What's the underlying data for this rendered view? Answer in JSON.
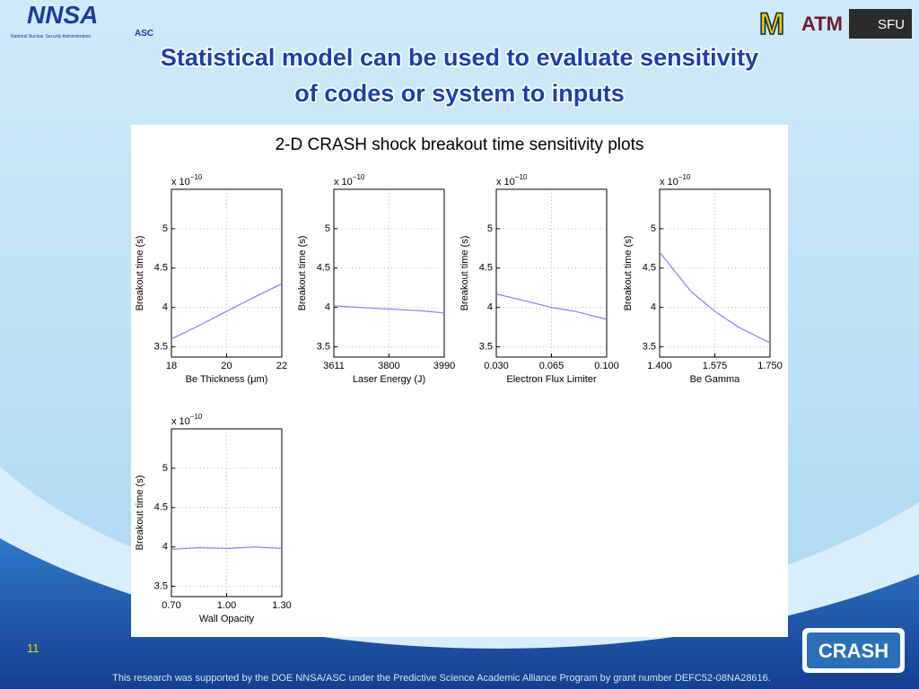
{
  "slide": {
    "title_line1": "Statistical model can be used to evaluate sensitivity",
    "title_line2": "of codes or system to inputs",
    "panel_title": "2-D CRASH shock breakout time sensitivity plots",
    "page_number": "11",
    "footer": "This research was supported by the DOE NNSA/ASC under the Predictive Science Academic Alliance Program by grant number DEFC52-08NA28616.",
    "logo_nnsa": "NNSA",
    "logo_nnsa_sub": "National Nuclear Security Administration",
    "logo_asc": "ASC",
    "logo_m": "M",
    "logo_tamu": "ATM",
    "logo_sfu": "SFU",
    "logo_crash": "CRASH"
  },
  "chart_data": [
    {
      "type": "line",
      "ylabel": "Breakout time (s)",
      "y_multiplier": "x 10",
      "y_exponent": "−10",
      "xlabel": "Be Thickness (μm)",
      "x": [
        18,
        19,
        20,
        21,
        22
      ],
      "series": [
        {
          "color": "#7f7ff2",
          "values": [
            3.6,
            3.77,
            3.95,
            4.13,
            4.3
          ]
        }
      ],
      "xlim": [
        18,
        22
      ],
      "xticks": [
        18,
        20,
        22
      ],
      "ylim": [
        3.37,
        5.5
      ],
      "yticks": [
        3.5,
        4,
        4.5,
        5
      ],
      "grid": true
    },
    {
      "type": "line",
      "ylabel": "Breakout time (s)",
      "y_multiplier": "x 10",
      "y_exponent": "−10",
      "xlabel": "Laser Energy (J)",
      "x": [
        3611,
        3700,
        3800,
        3900,
        3990
      ],
      "series": [
        {
          "color": "#7f7ff2",
          "values": [
            4.02,
            4.0,
            3.98,
            3.96,
            3.93
          ]
        }
      ],
      "xlim": [
        3611,
        3990
      ],
      "xticks": [
        3611,
        3800,
        3990
      ],
      "ylim": [
        3.37,
        5.5
      ],
      "yticks": [
        3.5,
        4,
        4.5,
        5
      ],
      "grid": true
    },
    {
      "type": "line",
      "ylabel": "Breakout time (s)",
      "y_multiplier": "x 10",
      "y_exponent": "−10",
      "xlabel": "Electron Flux Limiter",
      "x": [
        0.03,
        0.045,
        0.065,
        0.08,
        0.1
      ],
      "series": [
        {
          "color": "#7f7ff2",
          "values": [
            4.17,
            4.1,
            4.0,
            3.95,
            3.85
          ]
        }
      ],
      "xlim": [
        0.03,
        0.1
      ],
      "xticks": [
        {
          "value": 0.03,
          "label": "0.030"
        },
        {
          "value": 0.065,
          "label": "0.065"
        },
        {
          "value": 0.1,
          "label": "0.100"
        }
      ],
      "ylim": [
        3.37,
        5.5
      ],
      "yticks": [
        3.5,
        4,
        4.5,
        5
      ],
      "grid": true
    },
    {
      "type": "line",
      "ylabel": "Breakout time (s)",
      "y_multiplier": "x 10",
      "y_exponent": "−10",
      "xlabel": "Be Gamma",
      "x": [
        1.4,
        1.45,
        1.5,
        1.575,
        1.65,
        1.75
      ],
      "series": [
        {
          "color": "#7f7ff2",
          "values": [
            4.7,
            4.45,
            4.2,
            3.95,
            3.75,
            3.55
          ]
        }
      ],
      "xlim": [
        1.4,
        1.75
      ],
      "xticks": [
        {
          "value": 1.4,
          "label": "1.400"
        },
        {
          "value": 1.575,
          "label": "1.575"
        },
        {
          "value": 1.75,
          "label": "1.750"
        }
      ],
      "ylim": [
        3.37,
        5.5
      ],
      "yticks": [
        3.5,
        4,
        4.5,
        5
      ],
      "grid": true
    },
    {
      "type": "line",
      "ylabel": "Breakout time (s)",
      "y_multiplier": "x 10",
      "y_exponent": "−10",
      "xlabel": "Wall Opacity",
      "x": [
        0.7,
        0.85,
        1.0,
        1.15,
        1.3
      ],
      "series": [
        {
          "color": "#7f7ff2",
          "values": [
            3.97,
            3.99,
            3.98,
            4.0,
            3.98
          ]
        }
      ],
      "xlim": [
        0.7,
        1.3
      ],
      "xticks": [
        {
          "value": 0.7,
          "label": "0.70"
        },
        {
          "value": 1.0,
          "label": "1.00"
        },
        {
          "value": 1.3,
          "label": "1.30"
        }
      ],
      "ylim": [
        3.37,
        5.5
      ],
      "yticks": [
        3.5,
        4,
        4.5,
        5
      ],
      "grid": true
    }
  ]
}
